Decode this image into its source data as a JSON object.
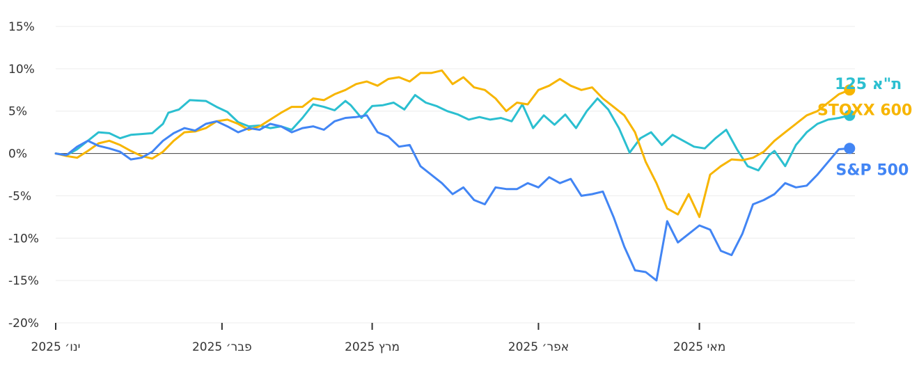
{
  "chart_data": {
    "type": "line",
    "y_unit": "%",
    "ylim": [
      -20,
      15
    ],
    "y_ticks": [
      15,
      10,
      5,
      0,
      -5,
      -10,
      -15,
      -20
    ],
    "y_tick_labels": [
      "15%",
      "10%",
      "5%",
      "0%",
      "-5%",
      "-10%",
      "-15%",
      "-20%"
    ],
    "x_range": [
      "2025-01-01",
      "2025-05-30"
    ],
    "x_ticks": [
      {
        "date": "2025-01-01",
        "label": "ינו׳ 2025"
      },
      {
        "date": "2025-02-01",
        "label": "פבר׳ 2025"
      },
      {
        "date": "2025-03-01",
        "label": "מרץ 2025"
      },
      {
        "date": "2025-04-01",
        "label": "אפר׳ 2025"
      },
      {
        "date": "2025-05-01",
        "label": "מאי 2025"
      }
    ],
    "grid": true,
    "series": [
      {
        "name": "ת\"א 125",
        "color": "#2bbfd0",
        "data": [
          [
            "2025-01-01",
            0
          ],
          [
            "2025-01-03",
            -0.2
          ],
          [
            "2025-01-05",
            0.5
          ],
          [
            "2025-01-07",
            1.5
          ],
          [
            "2025-01-09",
            2.5
          ],
          [
            "2025-01-11",
            2.4
          ],
          [
            "2025-01-13",
            1.8
          ],
          [
            "2025-01-15",
            2.2
          ],
          [
            "2025-01-17",
            2.3
          ],
          [
            "2025-01-19",
            2.4
          ],
          [
            "2025-01-21",
            3.5
          ],
          [
            "2025-01-22",
            4.8
          ],
          [
            "2025-01-24",
            5.2
          ],
          [
            "2025-01-26",
            6.3
          ],
          [
            "2025-01-29",
            6.2
          ],
          [
            "2025-01-31",
            5.5
          ],
          [
            "2025-02-02",
            4.9
          ],
          [
            "2025-02-04",
            3.7
          ],
          [
            "2025-02-06",
            3.2
          ],
          [
            "2025-02-08",
            3.3
          ],
          [
            "2025-02-10",
            3.0
          ],
          [
            "2025-02-12",
            3.2
          ],
          [
            "2025-02-14",
            2.8
          ],
          [
            "2025-02-16",
            4.2
          ],
          [
            "2025-02-18",
            5.8
          ],
          [
            "2025-02-20",
            5.5
          ],
          [
            "2025-02-22",
            5.1
          ],
          [
            "2025-02-24",
            6.2
          ],
          [
            "2025-02-25",
            5.7
          ],
          [
            "2025-02-27",
            4.2
          ],
          [
            "2025-03-01",
            5.6
          ],
          [
            "2025-03-03",
            5.7
          ],
          [
            "2025-03-05",
            6.0
          ],
          [
            "2025-03-07",
            5.2
          ],
          [
            "2025-03-09",
            6.9
          ],
          [
            "2025-03-11",
            6.0
          ],
          [
            "2025-03-13",
            5.6
          ],
          [
            "2025-03-15",
            5.0
          ],
          [
            "2025-03-17",
            4.6
          ],
          [
            "2025-03-19",
            4.0
          ],
          [
            "2025-03-21",
            4.3
          ],
          [
            "2025-03-23",
            4.0
          ],
          [
            "2025-03-25",
            4.2
          ],
          [
            "2025-03-27",
            3.8
          ],
          [
            "2025-03-29",
            5.8
          ],
          [
            "2025-03-31",
            3.0
          ],
          [
            "2025-04-02",
            4.5
          ],
          [
            "2025-04-04",
            3.4
          ],
          [
            "2025-04-06",
            4.6
          ],
          [
            "2025-04-08",
            3.0
          ],
          [
            "2025-04-10",
            5.0
          ],
          [
            "2025-04-12",
            6.5
          ],
          [
            "2025-04-14",
            5.2
          ],
          [
            "2025-04-16",
            3.0
          ],
          [
            "2025-04-18",
            0.1
          ],
          [
            "2025-04-20",
            1.8
          ],
          [
            "2025-04-22",
            2.5
          ],
          [
            "2025-04-24",
            1.0
          ],
          [
            "2025-04-26",
            2.2
          ],
          [
            "2025-04-28",
            1.5
          ],
          [
            "2025-04-30",
            0.8
          ],
          [
            "2025-05-02",
            0.6
          ],
          [
            "2025-05-04",
            1.8
          ],
          [
            "2025-05-06",
            2.8
          ],
          [
            "2025-05-08",
            0.5
          ],
          [
            "2025-05-10",
            -1.5
          ],
          [
            "2025-05-12",
            -2.0
          ],
          [
            "2025-05-14",
            -0.2
          ],
          [
            "2025-05-15",
            0.3
          ],
          [
            "2025-05-17",
            -1.5
          ],
          [
            "2025-05-19",
            1.0
          ],
          [
            "2025-05-21",
            2.5
          ],
          [
            "2025-05-23",
            3.5
          ],
          [
            "2025-05-25",
            4.0
          ],
          [
            "2025-05-27",
            4.2
          ],
          [
            "2025-05-29",
            4.5
          ]
        ]
      },
      {
        "name": "STOXX 600",
        "color": "#f7b500",
        "data": [
          [
            "2025-01-01",
            0
          ],
          [
            "2025-01-03",
            -0.3
          ],
          [
            "2025-01-05",
            -0.5
          ],
          [
            "2025-01-07",
            0.3
          ],
          [
            "2025-01-09",
            1.2
          ],
          [
            "2025-01-11",
            1.5
          ],
          [
            "2025-01-13",
            1.0
          ],
          [
            "2025-01-15",
            0.3
          ],
          [
            "2025-01-17",
            -0.3
          ],
          [
            "2025-01-19",
            -0.6
          ],
          [
            "2025-01-21",
            0.2
          ],
          [
            "2025-01-23",
            1.5
          ],
          [
            "2025-01-25",
            2.5
          ],
          [
            "2025-01-27",
            2.6
          ],
          [
            "2025-01-29",
            3.0
          ],
          [
            "2025-01-31",
            3.8
          ],
          [
            "2025-02-02",
            4.0
          ],
          [
            "2025-02-04",
            3.5
          ],
          [
            "2025-02-06",
            2.8
          ],
          [
            "2025-02-08",
            3.2
          ],
          [
            "2025-02-10",
            4.0
          ],
          [
            "2025-02-12",
            4.8
          ],
          [
            "2025-02-14",
            5.5
          ],
          [
            "2025-02-16",
            5.5
          ],
          [
            "2025-02-18",
            6.5
          ],
          [
            "2025-02-20",
            6.3
          ],
          [
            "2025-02-22",
            7.0
          ],
          [
            "2025-02-24",
            7.5
          ],
          [
            "2025-02-26",
            8.2
          ],
          [
            "2025-02-28",
            8.5
          ],
          [
            "2025-03-02",
            8.0
          ],
          [
            "2025-03-04",
            8.8
          ],
          [
            "2025-03-06",
            9.0
          ],
          [
            "2025-03-08",
            8.5
          ],
          [
            "2025-03-10",
            9.5
          ],
          [
            "2025-03-12",
            9.5
          ],
          [
            "2025-03-14",
            9.8
          ],
          [
            "2025-03-16",
            8.2
          ],
          [
            "2025-03-18",
            9.0
          ],
          [
            "2025-03-20",
            7.8
          ],
          [
            "2025-03-22",
            7.5
          ],
          [
            "2025-03-24",
            6.5
          ],
          [
            "2025-03-26",
            5.0
          ],
          [
            "2025-03-28",
            6.0
          ],
          [
            "2025-03-30",
            5.8
          ],
          [
            "2025-04-01",
            7.5
          ],
          [
            "2025-04-03",
            8.0
          ],
          [
            "2025-04-05",
            8.8
          ],
          [
            "2025-04-07",
            8.0
          ],
          [
            "2025-04-09",
            7.5
          ],
          [
            "2025-04-11",
            7.8
          ],
          [
            "2025-04-13",
            6.5
          ],
          [
            "2025-04-15",
            5.5
          ],
          [
            "2025-04-17",
            4.5
          ],
          [
            "2025-04-19",
            2.5
          ],
          [
            "2025-04-21",
            -1.0
          ],
          [
            "2025-04-23",
            -3.5
          ],
          [
            "2025-04-25",
            -6.5
          ],
          [
            "2025-04-27",
            -7.2
          ],
          [
            "2025-04-29",
            -4.8
          ],
          [
            "2025-05-01",
            -7.5
          ],
          [
            "2025-05-03",
            -2.5
          ],
          [
            "2025-05-05",
            -1.5
          ],
          [
            "2025-05-07",
            -0.7
          ],
          [
            "2025-05-09",
            -0.8
          ],
          [
            "2025-05-11",
            -0.5
          ],
          [
            "2025-05-13",
            0.2
          ],
          [
            "2025-05-15",
            1.5
          ],
          [
            "2025-05-17",
            2.5
          ],
          [
            "2025-05-19",
            3.5
          ],
          [
            "2025-05-21",
            4.5
          ],
          [
            "2025-05-23",
            5.0
          ],
          [
            "2025-05-25",
            6.0
          ],
          [
            "2025-05-27",
            7.0
          ],
          [
            "2025-05-29",
            7.5
          ]
        ]
      },
      {
        "name": "S&P 500",
        "color": "#4285f4",
        "data": [
          [
            "2025-01-01",
            0
          ],
          [
            "2025-01-03",
            -0.2
          ],
          [
            "2025-01-05",
            0.8
          ],
          [
            "2025-01-07",
            1.5
          ],
          [
            "2025-01-09",
            0.9
          ],
          [
            "2025-01-11",
            0.6
          ],
          [
            "2025-01-13",
            0.2
          ],
          [
            "2025-01-15",
            -0.7
          ],
          [
            "2025-01-17",
            -0.5
          ],
          [
            "2025-01-19",
            0.2
          ],
          [
            "2025-01-21",
            1.5
          ],
          [
            "2025-01-23",
            2.4
          ],
          [
            "2025-01-25",
            3.0
          ],
          [
            "2025-01-27",
            2.7
          ],
          [
            "2025-01-29",
            3.5
          ],
          [
            "2025-01-31",
            3.8
          ],
          [
            "2025-02-02",
            3.2
          ],
          [
            "2025-02-04",
            2.5
          ],
          [
            "2025-02-06",
            3.0
          ],
          [
            "2025-02-08",
            2.8
          ],
          [
            "2025-02-10",
            3.5
          ],
          [
            "2025-02-12",
            3.2
          ],
          [
            "2025-02-14",
            2.5
          ],
          [
            "2025-02-16",
            3.0
          ],
          [
            "2025-02-18",
            3.2
          ],
          [
            "2025-02-20",
            2.8
          ],
          [
            "2025-02-22",
            3.8
          ],
          [
            "2025-02-24",
            4.2
          ],
          [
            "2025-02-26",
            4.3
          ],
          [
            "2025-02-28",
            4.5
          ],
          [
            "2025-03-02",
            2.5
          ],
          [
            "2025-03-04",
            2.0
          ],
          [
            "2025-03-06",
            0.8
          ],
          [
            "2025-03-08",
            1.0
          ],
          [
            "2025-03-10",
            -1.5
          ],
          [
            "2025-03-12",
            -2.5
          ],
          [
            "2025-03-14",
            -3.5
          ],
          [
            "2025-03-16",
            -4.8
          ],
          [
            "2025-03-18",
            -4.0
          ],
          [
            "2025-03-20",
            -5.5
          ],
          [
            "2025-03-22",
            -6.0
          ],
          [
            "2025-03-24",
            -4.0
          ],
          [
            "2025-03-26",
            -4.2
          ],
          [
            "2025-03-28",
            -4.2
          ],
          [
            "2025-03-30",
            -3.5
          ],
          [
            "2025-04-01",
            -4.0
          ],
          [
            "2025-04-03",
            -2.8
          ],
          [
            "2025-04-05",
            -3.5
          ],
          [
            "2025-04-07",
            -3.0
          ],
          [
            "2025-04-09",
            -5.0
          ],
          [
            "2025-04-11",
            -4.8
          ],
          [
            "2025-04-13",
            -4.5
          ],
          [
            "2025-04-15",
            -7.5
          ],
          [
            "2025-04-17",
            -11.0
          ],
          [
            "2025-04-19",
            -13.8
          ],
          [
            "2025-04-21",
            -14.0
          ],
          [
            "2025-04-23",
            -15.0
          ],
          [
            "2025-04-25",
            -8.0
          ],
          [
            "2025-04-27",
            -10.5
          ],
          [
            "2025-04-29",
            -9.5
          ],
          [
            "2025-05-01",
            -8.5
          ],
          [
            "2025-05-03",
            -9.0
          ],
          [
            "2025-05-05",
            -11.5
          ],
          [
            "2025-05-07",
            -12.0
          ],
          [
            "2025-05-09",
            -9.5
          ],
          [
            "2025-05-11",
            -6.0
          ],
          [
            "2025-05-13",
            -5.5
          ],
          [
            "2025-05-15",
            -4.8
          ],
          [
            "2025-05-17",
            -3.5
          ],
          [
            "2025-05-19",
            -4.0
          ],
          [
            "2025-05-21",
            -3.8
          ],
          [
            "2025-05-23",
            -2.5
          ],
          [
            "2025-05-25",
            -1.0
          ],
          [
            "2025-05-27",
            0.5
          ],
          [
            "2025-05-29",
            0.6
          ]
        ]
      }
    ]
  }
}
